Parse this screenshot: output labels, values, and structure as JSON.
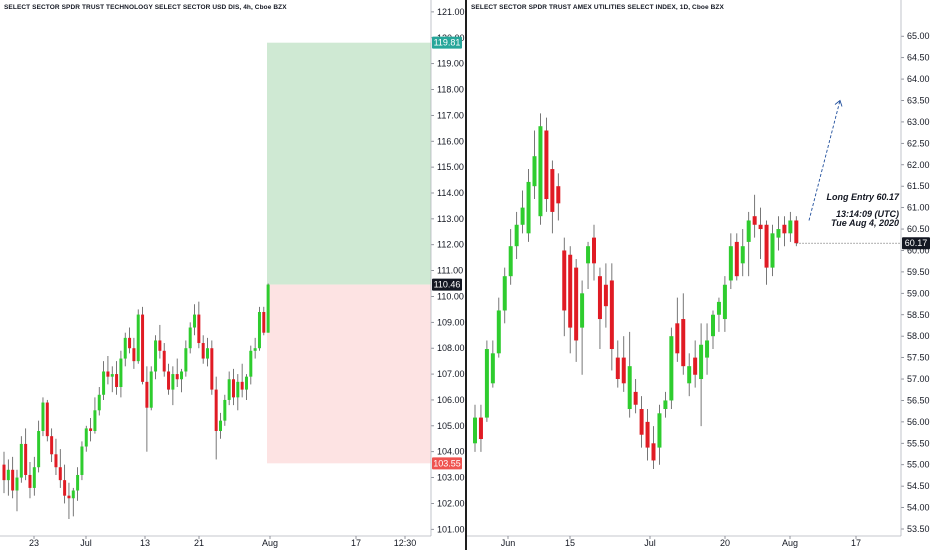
{
  "colors": {
    "up": "#2ecc2e",
    "down": "#e01b24",
    "profit_zone": "#cfe9d3",
    "loss_zone": "#fde3e3",
    "badge_dark": "#131722",
    "badge_green": "#26a69a",
    "badge_red": "#ef5350",
    "arrow": "#1f4e9c"
  },
  "chart_data": [
    {
      "type": "candlestick",
      "title": "SELECT SECTOR SPDR TRUST TECHNOLOGY SELECT SECTOR USD DIS, 4h, Cboe BZX",
      "ylim": [
        101,
        121.5
      ],
      "y_ticks": [
        "101.00",
        "102.00",
        "103.00",
        "104.00",
        "105.00",
        "106.00",
        "107.00",
        "108.00",
        "109.00",
        "110.00",
        "111.00",
        "112.00",
        "113.00",
        "114.00",
        "115.00",
        "116.00",
        "117.00",
        "118.00",
        "119.00",
        "120.00",
        "121.00"
      ],
      "x_ticks": [
        "23",
        "Jul",
        "13",
        "21",
        "Aug",
        "17",
        "12:30"
      ],
      "price_labels": {
        "profit_target": "119.81",
        "entry": "110.46",
        "stop": "103.55"
      },
      "candles": [
        {
          "o": 103.5,
          "h": 104.0,
          "l": 102.4,
          "c": 102.9
        },
        {
          "o": 102.9,
          "h": 103.7,
          "l": 102.3,
          "c": 103.3
        },
        {
          "o": 103.3,
          "h": 103.8,
          "l": 102.2,
          "c": 102.5
        },
        {
          "o": 102.5,
          "h": 103.3,
          "l": 101.7,
          "c": 103.0
        },
        {
          "o": 103.0,
          "h": 104.6,
          "l": 102.8,
          "c": 104.3
        },
        {
          "o": 104.3,
          "h": 104.9,
          "l": 102.9,
          "c": 103.1
        },
        {
          "o": 103.1,
          "h": 103.6,
          "l": 102.2,
          "c": 102.6
        },
        {
          "o": 102.6,
          "h": 103.8,
          "l": 102.3,
          "c": 103.4
        },
        {
          "o": 103.4,
          "h": 105.2,
          "l": 103.2,
          "c": 104.8
        },
        {
          "o": 104.8,
          "h": 106.1,
          "l": 104.6,
          "c": 105.9
        },
        {
          "o": 105.9,
          "h": 106.0,
          "l": 104.4,
          "c": 104.6
        },
        {
          "o": 104.6,
          "h": 104.9,
          "l": 103.6,
          "c": 103.9
        },
        {
          "o": 103.9,
          "h": 104.5,
          "l": 103.1,
          "c": 103.4
        },
        {
          "o": 103.4,
          "h": 104.1,
          "l": 102.6,
          "c": 102.9
        },
        {
          "o": 102.9,
          "h": 103.5,
          "l": 102.0,
          "c": 102.3
        },
        {
          "o": 102.3,
          "h": 102.8,
          "l": 101.4,
          "c": 102.2
        },
        {
          "o": 102.2,
          "h": 102.6,
          "l": 101.5,
          "c": 102.5
        },
        {
          "o": 102.5,
          "h": 103.4,
          "l": 102.1,
          "c": 103.1
        },
        {
          "o": 103.1,
          "h": 104.4,
          "l": 102.9,
          "c": 104.2
        },
        {
          "o": 104.2,
          "h": 105.0,
          "l": 104.0,
          "c": 104.9
        },
        {
          "o": 104.9,
          "h": 105.3,
          "l": 104.4,
          "c": 104.8
        },
        {
          "o": 104.8,
          "h": 106.1,
          "l": 104.7,
          "c": 105.6
        },
        {
          "o": 105.6,
          "h": 106.5,
          "l": 105.4,
          "c": 106.2
        },
        {
          "o": 106.2,
          "h": 107.5,
          "l": 106.0,
          "c": 107.1
        },
        {
          "o": 107.1,
          "h": 107.7,
          "l": 106.6,
          "c": 106.9
        },
        {
          "o": 106.9,
          "h": 107.3,
          "l": 106.3,
          "c": 107.0
        },
        {
          "o": 107.0,
          "h": 107.5,
          "l": 106.2,
          "c": 106.5
        },
        {
          "o": 106.5,
          "h": 107.9,
          "l": 106.1,
          "c": 107.6
        },
        {
          "o": 107.6,
          "h": 108.6,
          "l": 107.3,
          "c": 108.4
        },
        {
          "o": 108.4,
          "h": 108.8,
          "l": 107.8,
          "c": 108.0
        },
        {
          "o": 108.0,
          "h": 108.4,
          "l": 107.2,
          "c": 107.5
        },
        {
          "o": 107.5,
          "h": 109.5,
          "l": 107.4,
          "c": 109.3
        },
        {
          "o": 109.3,
          "h": 109.6,
          "l": 106.6,
          "c": 106.7
        },
        {
          "o": 106.7,
          "h": 107.3,
          "l": 104.0,
          "c": 105.7
        },
        {
          "o": 105.7,
          "h": 107.3,
          "l": 105.6,
          "c": 107.1
        },
        {
          "o": 107.1,
          "h": 108.5,
          "l": 106.8,
          "c": 108.3
        },
        {
          "o": 108.3,
          "h": 108.9,
          "l": 107.6,
          "c": 107.9
        },
        {
          "o": 107.9,
          "h": 108.2,
          "l": 106.9,
          "c": 107.1
        },
        {
          "o": 107.1,
          "h": 107.4,
          "l": 106.2,
          "c": 106.4
        },
        {
          "o": 106.4,
          "h": 107.3,
          "l": 105.8,
          "c": 107.0
        },
        {
          "o": 107.0,
          "h": 107.6,
          "l": 106.5,
          "c": 106.8
        },
        {
          "o": 106.8,
          "h": 107.2,
          "l": 106.3,
          "c": 107.1
        },
        {
          "o": 107.1,
          "h": 108.3,
          "l": 106.9,
          "c": 108.0
        },
        {
          "o": 108.0,
          "h": 109.0,
          "l": 107.8,
          "c": 108.8
        },
        {
          "o": 108.8,
          "h": 109.7,
          "l": 108.5,
          "c": 109.3
        },
        {
          "o": 109.3,
          "h": 109.8,
          "l": 108.0,
          "c": 108.2
        },
        {
          "o": 108.2,
          "h": 108.5,
          "l": 107.4,
          "c": 107.6
        },
        {
          "o": 107.6,
          "h": 108.4,
          "l": 107.3,
          "c": 108.0
        },
        {
          "o": 108.0,
          "h": 108.3,
          "l": 106.2,
          "c": 106.4
        },
        {
          "o": 106.4,
          "h": 106.9,
          "l": 103.7,
          "c": 104.8
        },
        {
          "o": 104.8,
          "h": 105.5,
          "l": 104.5,
          "c": 105.2
        },
        {
          "o": 105.2,
          "h": 106.2,
          "l": 105.0,
          "c": 106.0
        },
        {
          "o": 106.0,
          "h": 107.1,
          "l": 105.8,
          "c": 106.8
        },
        {
          "o": 106.8,
          "h": 107.2,
          "l": 105.8,
          "c": 106.1
        },
        {
          "o": 106.1,
          "h": 107.0,
          "l": 105.6,
          "c": 106.7
        },
        {
          "o": 106.7,
          "h": 107.4,
          "l": 106.1,
          "c": 106.4
        },
        {
          "o": 106.4,
          "h": 107.0,
          "l": 106.0,
          "c": 106.9
        },
        {
          "o": 106.9,
          "h": 108.1,
          "l": 106.6,
          "c": 107.9
        },
        {
          "o": 107.9,
          "h": 108.4,
          "l": 107.6,
          "c": 108.0
        },
        {
          "o": 108.0,
          "h": 109.6,
          "l": 107.9,
          "c": 109.4
        },
        {
          "o": 109.4,
          "h": 109.6,
          "l": 108.5,
          "c": 108.6
        },
        {
          "o": 108.6,
          "h": 110.5,
          "l": 108.6,
          "c": 110.46
        }
      ],
      "position": {
        "entry": 110.46,
        "target": 119.81,
        "stop": 103.55
      }
    },
    {
      "type": "candlestick",
      "title": "SELECT SECTOR SPDR TRUST AMEX UTILITIES SELECT INDEX, 1D, Cboe BZX",
      "ylim": [
        53.3,
        65.3
      ],
      "y_ticks": [
        "53.50",
        "54.00",
        "54.50",
        "55.00",
        "55.50",
        "56.00",
        "56.50",
        "57.00",
        "57.50",
        "58.00",
        "58.50",
        "59.00",
        "59.50",
        "60.00",
        "60.50",
        "61.00",
        "61.50",
        "62.00",
        "62.50",
        "63.00",
        "63.50",
        "64.00",
        "64.50",
        "65.00"
      ],
      "x_ticks": [
        "Jun",
        "15",
        "Jul",
        "20",
        "Aug",
        "17"
      ],
      "price_labels": {
        "last": "60.17"
      },
      "annotations": {
        "entry_text": "Long Entry 60.17",
        "time_text": "13:14:09 (UTC)",
        "date_text": "Tue Aug 4, 2020"
      },
      "candles": [
        {
          "o": 55.5,
          "h": 56.4,
          "l": 55.3,
          "c": 56.1
        },
        {
          "o": 56.1,
          "h": 56.4,
          "l": 55.3,
          "c": 55.6
        },
        {
          "o": 56.1,
          "h": 57.9,
          "l": 56.0,
          "c": 57.7
        },
        {
          "o": 56.9,
          "h": 57.9,
          "l": 56.8,
          "c": 57.6
        },
        {
          "o": 57.6,
          "h": 58.9,
          "l": 57.5,
          "c": 58.6
        },
        {
          "o": 58.6,
          "h": 59.6,
          "l": 58.3,
          "c": 59.4
        },
        {
          "o": 59.4,
          "h": 60.5,
          "l": 59.2,
          "c": 60.1
        },
        {
          "o": 60.1,
          "h": 60.9,
          "l": 59.8,
          "c": 60.6
        },
        {
          "o": 60.6,
          "h": 61.4,
          "l": 60.4,
          "c": 61.0
        },
        {
          "o": 60.4,
          "h": 61.9,
          "l": 60.2,
          "c": 61.6
        },
        {
          "o": 61.5,
          "h": 62.8,
          "l": 61.2,
          "c": 62.2
        },
        {
          "o": 60.8,
          "h": 63.2,
          "l": 60.6,
          "c": 62.9
        },
        {
          "o": 62.8,
          "h": 63.1,
          "l": 60.9,
          "c": 61.2
        },
        {
          "o": 61.9,
          "h": 62.1,
          "l": 60.4,
          "c": 60.9
        },
        {
          "o": 61.5,
          "h": 61.8,
          "l": 60.7,
          "c": 61.1
        },
        {
          "o": 60.0,
          "h": 60.3,
          "l": 58.0,
          "c": 58.6
        },
        {
          "o": 59.9,
          "h": 60.1,
          "l": 57.6,
          "c": 58.2
        },
        {
          "o": 59.6,
          "h": 59.8,
          "l": 57.4,
          "c": 57.9
        },
        {
          "o": 58.2,
          "h": 59.3,
          "l": 57.1,
          "c": 59.0
        },
        {
          "o": 59.7,
          "h": 60.2,
          "l": 59.1,
          "c": 60.1
        },
        {
          "o": 60.3,
          "h": 60.6,
          "l": 59.3,
          "c": 59.7
        },
        {
          "o": 59.4,
          "h": 59.6,
          "l": 57.7,
          "c": 58.4
        },
        {
          "o": 59.2,
          "h": 59.7,
          "l": 58.2,
          "c": 58.7
        },
        {
          "o": 59.3,
          "h": 59.7,
          "l": 57.2,
          "c": 57.7
        },
        {
          "o": 57.5,
          "h": 57.9,
          "l": 56.8,
          "c": 57.0
        },
        {
          "o": 57.5,
          "h": 58.0,
          "l": 56.7,
          "c": 56.9
        },
        {
          "o": 56.3,
          "h": 58.1,
          "l": 56.1,
          "c": 57.3
        },
        {
          "o": 56.7,
          "h": 57.0,
          "l": 56.2,
          "c": 56.4
        },
        {
          "o": 56.3,
          "h": 56.6,
          "l": 55.4,
          "c": 55.7
        },
        {
          "o": 56.0,
          "h": 56.3,
          "l": 55.1,
          "c": 55.4
        },
        {
          "o": 55.5,
          "h": 55.9,
          "l": 54.9,
          "c": 55.1
        },
        {
          "o": 55.4,
          "h": 56.4,
          "l": 55.0,
          "c": 56.2
        },
        {
          "o": 56.3,
          "h": 56.7,
          "l": 56.1,
          "c": 56.5
        },
        {
          "o": 56.5,
          "h": 58.2,
          "l": 56.3,
          "c": 58.0
        },
        {
          "o": 58.3,
          "h": 58.9,
          "l": 57.4,
          "c": 57.6
        },
        {
          "o": 58.4,
          "h": 59.0,
          "l": 57.1,
          "c": 57.3
        },
        {
          "o": 56.9,
          "h": 57.6,
          "l": 56.6,
          "c": 57.3
        },
        {
          "o": 57.5,
          "h": 57.9,
          "l": 56.8,
          "c": 57.1
        },
        {
          "o": 57.0,
          "h": 58.3,
          "l": 55.9,
          "c": 57.8
        },
        {
          "o": 57.5,
          "h": 58.3,
          "l": 57.1,
          "c": 57.9
        },
        {
          "o": 58.0,
          "h": 58.6,
          "l": 57.7,
          "c": 58.5
        },
        {
          "o": 58.5,
          "h": 58.9,
          "l": 58.1,
          "c": 58.8
        },
        {
          "o": 58.4,
          "h": 59.4,
          "l": 58.1,
          "c": 59.2
        },
        {
          "o": 59.3,
          "h": 60.4,
          "l": 59.1,
          "c": 60.1
        },
        {
          "o": 60.2,
          "h": 60.4,
          "l": 59.3,
          "c": 59.4
        },
        {
          "o": 59.7,
          "h": 60.5,
          "l": 59.4,
          "c": 60.1
        },
        {
          "o": 60.2,
          "h": 60.9,
          "l": 59.4,
          "c": 60.7
        },
        {
          "o": 60.8,
          "h": 61.3,
          "l": 60.3,
          "c": 60.6
        },
        {
          "o": 60.6,
          "h": 61.0,
          "l": 59.8,
          "c": 60.5
        },
        {
          "o": 60.6,
          "h": 60.7,
          "l": 59.2,
          "c": 59.6
        },
        {
          "o": 59.6,
          "h": 60.6,
          "l": 59.4,
          "c": 60.4
        },
        {
          "o": 60.3,
          "h": 60.8,
          "l": 60.0,
          "c": 60.5
        },
        {
          "o": 60.6,
          "h": 60.8,
          "l": 60.1,
          "c": 60.4
        },
        {
          "o": 60.4,
          "h": 60.9,
          "l": 60.2,
          "c": 60.7
        },
        {
          "o": 60.7,
          "h": 60.8,
          "l": 60.1,
          "c": 60.17
        }
      ],
      "forecast_arrow": {
        "from_price": 60.7,
        "to_price": 63.5
      }
    }
  ]
}
